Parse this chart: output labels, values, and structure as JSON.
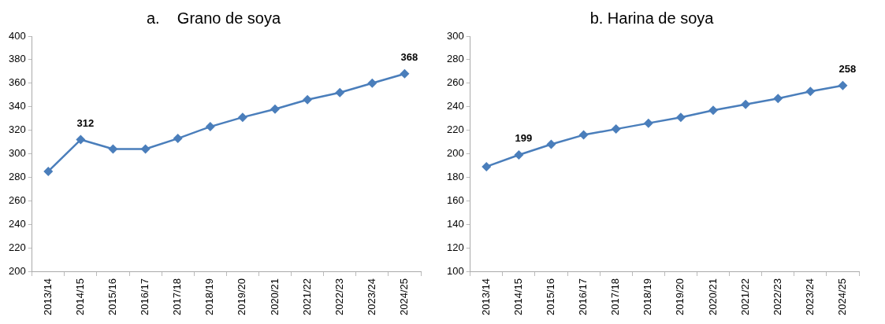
{
  "chart_data": [
    {
      "type": "line",
      "title": "a.    Grano de soya",
      "categories": [
        "2013/14",
        "2014/15",
        "2015/16",
        "2016/17",
        "2017/18",
        "2018/19",
        "2019/20",
        "2020/21",
        "2021/22",
        "2022/23",
        "2023/24",
        "2024/25"
      ],
      "series": [
        {
          "color": "#4a7ebb",
          "values": [
            285,
            312,
            304,
            304,
            313,
            323,
            331,
            338,
            346,
            352,
            360,
            368
          ],
          "value_labels": [
            null,
            "312",
            null,
            null,
            null,
            null,
            null,
            null,
            null,
            null,
            null,
            "368"
          ]
        }
      ],
      "ylim": [
        200,
        400
      ],
      "yticks": [
        200,
        220,
        240,
        260,
        280,
        300,
        320,
        340,
        360,
        380,
        400
      ],
      "grid": false,
      "legend": false,
      "marker": "diamond",
      "line_style": "solid"
    },
    {
      "type": "line",
      "title": "b. Harina de soya",
      "categories": [
        "2013/14",
        "2014/15",
        "2015/16",
        "2016/17",
        "2017/18",
        "2018/19",
        "2019/20",
        "2020/21",
        "2021/22",
        "2022/23",
        "2023/24",
        "2024/25"
      ],
      "series": [
        {
          "color": "#4a7ebb",
          "values": [
            189,
            199,
            208,
            216,
            221,
            226,
            231,
            237,
            242,
            247,
            253,
            258
          ],
          "value_labels": [
            null,
            "199",
            null,
            null,
            null,
            null,
            null,
            null,
            null,
            null,
            null,
            "258"
          ]
        }
      ],
      "ylim": [
        100,
        300
      ],
      "yticks": [
        100,
        120,
        140,
        160,
        180,
        200,
        220,
        240,
        260,
        280,
        300
      ],
      "grid": false,
      "legend": false,
      "marker": "diamond",
      "line_style": "solid"
    }
  ]
}
